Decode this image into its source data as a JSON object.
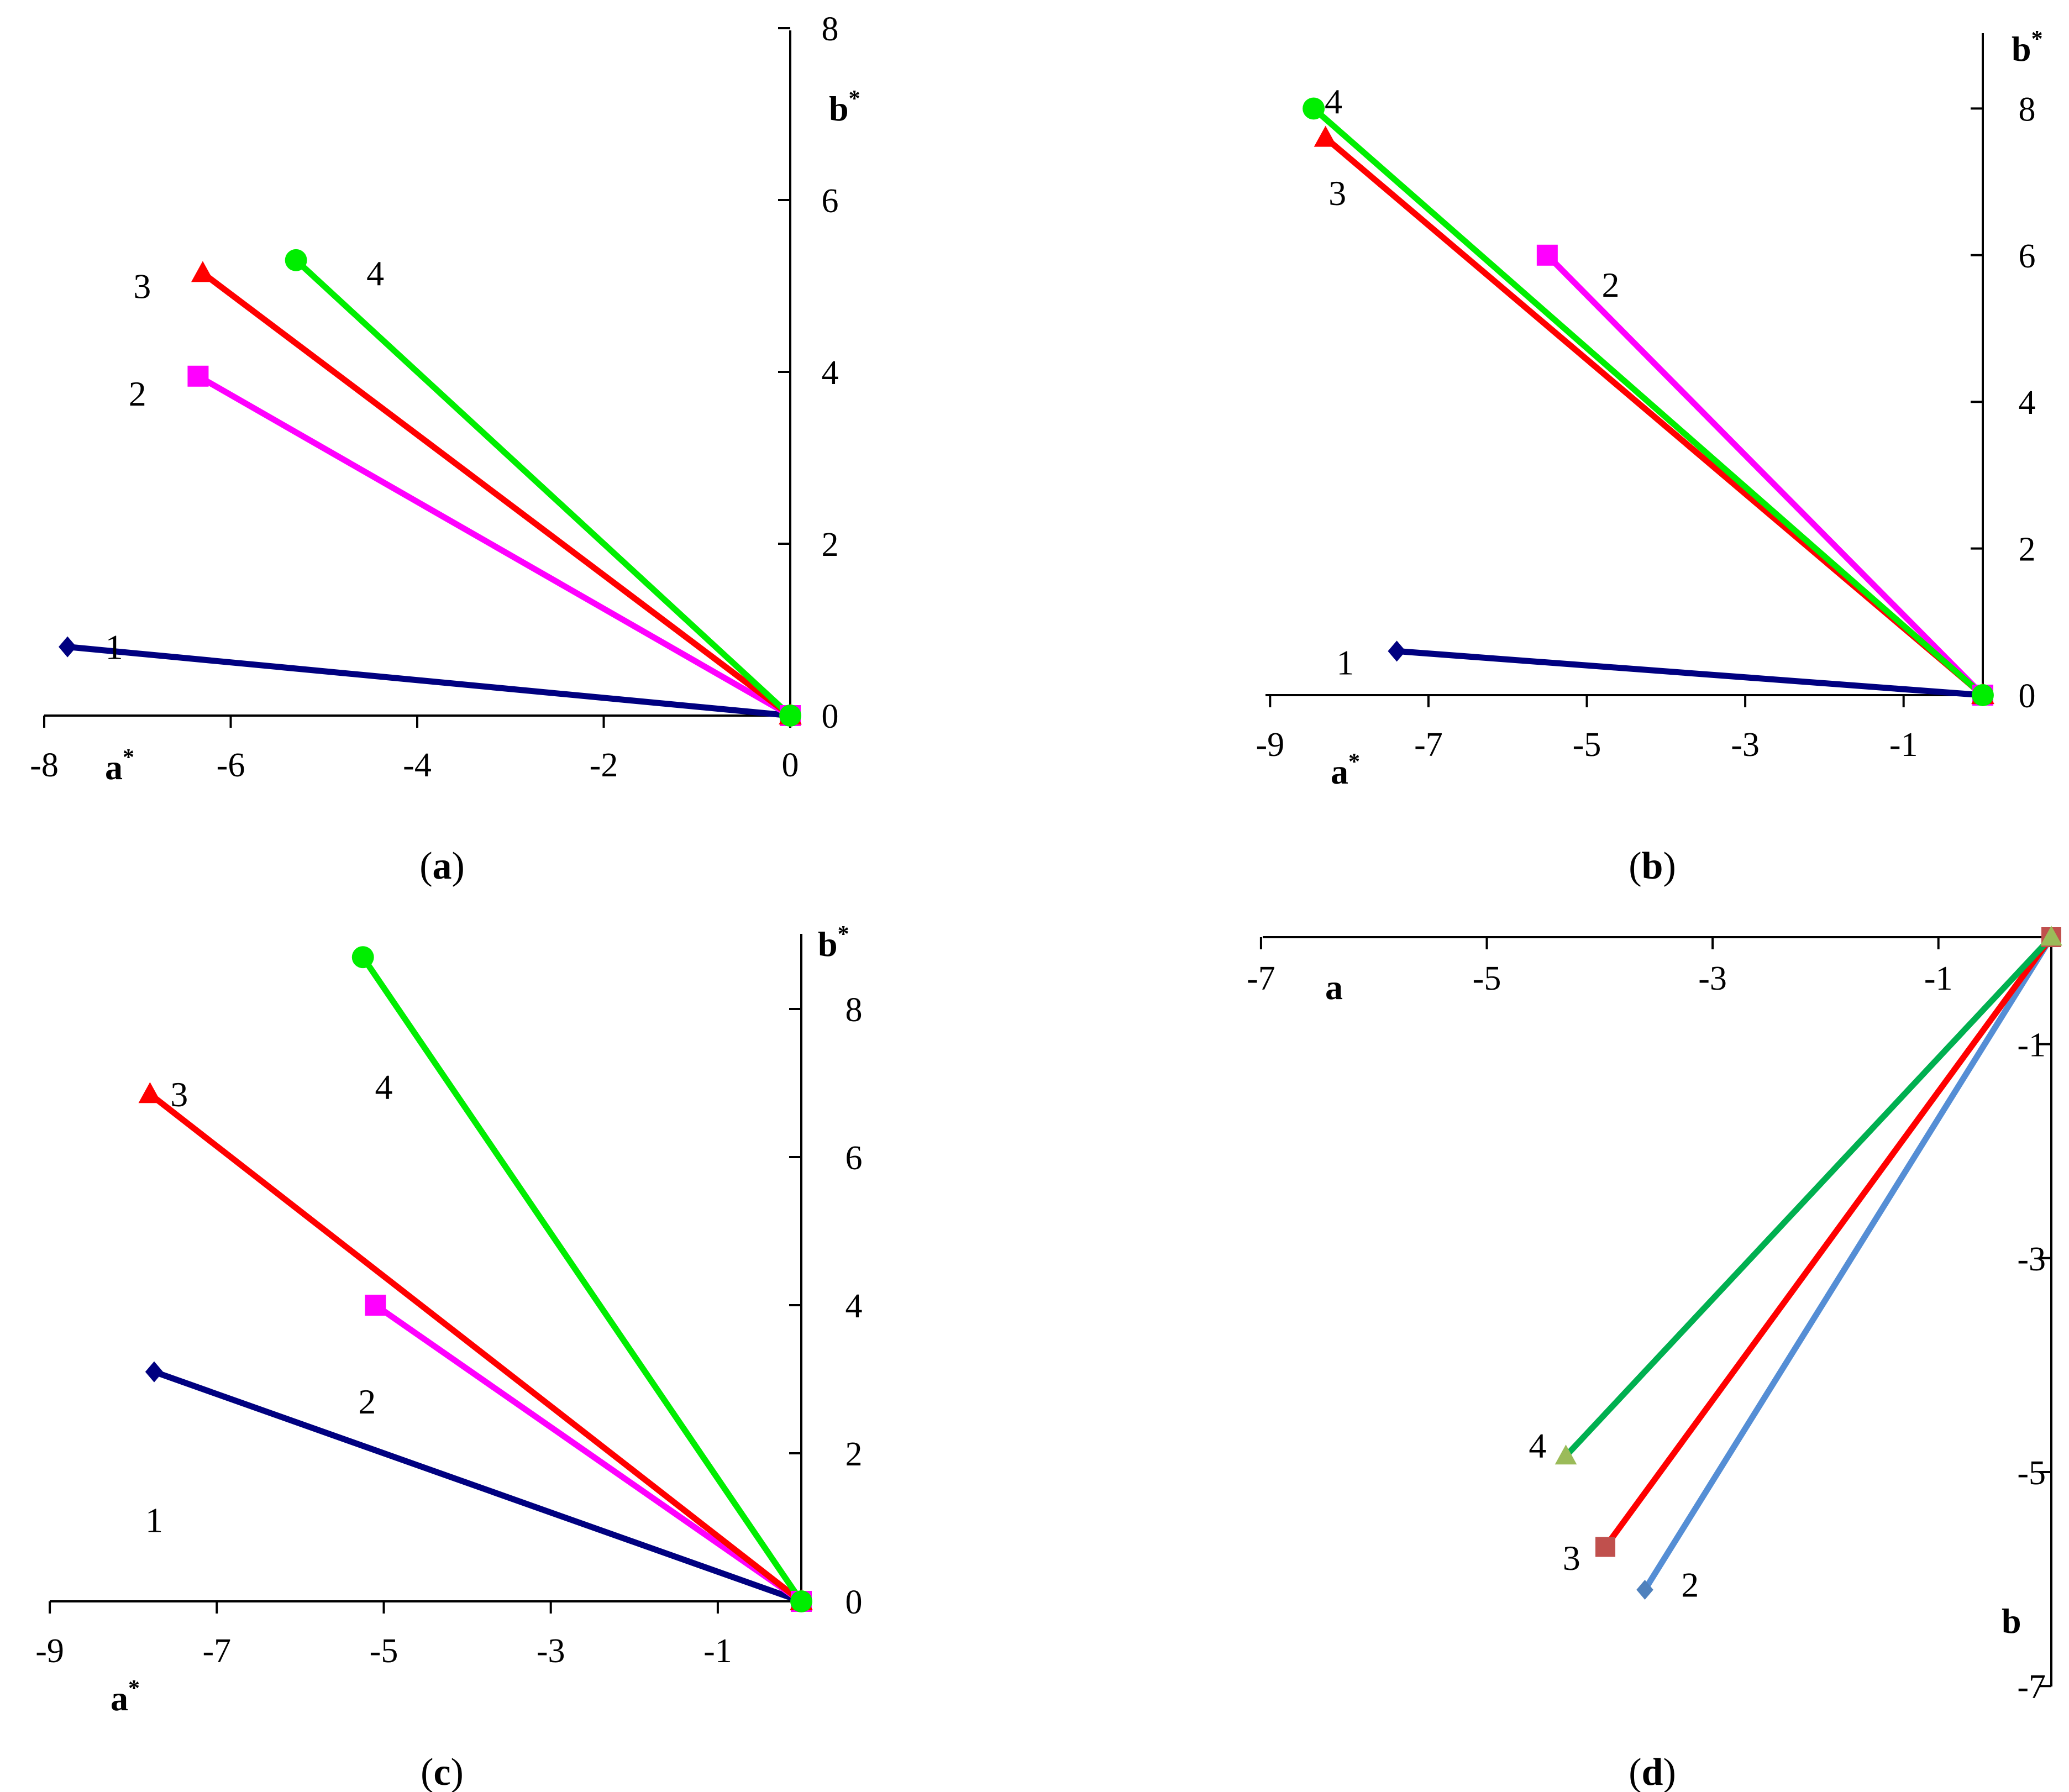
{
  "chart_data": [
    {
      "type": "line",
      "panel_label_open": "(",
      "panel_label_letter": "a",
      "panel_label_close": ")",
      "xlabel": "a",
      "xlabel_sup": "*",
      "ylabel": "b",
      "ylabel_sup": "*",
      "xlim": [
        -8,
        0
      ],
      "ylim": [
        0,
        8
      ],
      "xticks": [
        -8,
        -6,
        -4,
        -2,
        0
      ],
      "yticks": [
        0,
        2,
        4,
        6,
        8
      ],
      "series": [
        {
          "label": "1",
          "color": "#000080",
          "marker": "diamond",
          "x": [
            -7.75,
            0
          ],
          "y": [
            0.8,
            0
          ]
        },
        {
          "label": "2",
          "color": "#ff00ff",
          "marker": "square",
          "x": [
            -6.35,
            0
          ],
          "y": [
            3.95,
            0
          ]
        },
        {
          "label": "3",
          "color": "#ff0000",
          "marker": "triangle",
          "x": [
            -6.3,
            0
          ],
          "y": [
            5.15,
            0
          ]
        },
        {
          "label": "4",
          "color": "#00ee00",
          "marker": "circle",
          "x": [
            -5.3,
            0
          ],
          "y": [
            5.3,
            0
          ]
        }
      ]
    },
    {
      "type": "line",
      "panel_label_open": "(",
      "panel_label_letter": "b",
      "panel_label_close": ")",
      "xlabel": "a",
      "xlabel_sup": "*",
      "ylabel": "b",
      "ylabel_sup": "*",
      "xlim": [
        -9,
        0
      ],
      "ylim": [
        0,
        9
      ],
      "xticks": [
        -9,
        -7,
        -5,
        -3,
        -1
      ],
      "yticks": [
        0,
        2,
        4,
        6,
        8
      ],
      "series": [
        {
          "label": "1",
          "color": "#000080",
          "marker": "diamond",
          "x": [
            -7.4,
            0
          ],
          "y": [
            0.6,
            0
          ]
        },
        {
          "label": "2",
          "color": "#ff00ff",
          "marker": "square",
          "x": [
            -5.5,
            0
          ],
          "y": [
            6.0,
            0
          ]
        },
        {
          "label": "3",
          "color": "#ff0000",
          "marker": "triangle",
          "x": [
            -8.3,
            0
          ],
          "y": [
            7.6,
            0
          ]
        },
        {
          "label": "4",
          "color": "#00ee00",
          "marker": "circle",
          "x": [
            -8.45,
            0
          ],
          "y": [
            8.0,
            0
          ]
        }
      ]
    },
    {
      "type": "line",
      "panel_label_open": "(",
      "panel_label_letter": "c",
      "panel_label_close": ")",
      "xlabel": "a",
      "xlabel_sup": "*",
      "ylabel": "b",
      "ylabel_sup": "*",
      "xlim": [
        -9,
        0
      ],
      "ylim": [
        0,
        9
      ],
      "xticks": [
        -9,
        -7,
        -5,
        -3,
        -1
      ],
      "yticks": [
        0,
        2,
        4,
        6,
        8
      ],
      "series": [
        {
          "label": "1",
          "color": "#000080",
          "marker": "diamond",
          "x": [
            -7.75,
            0
          ],
          "y": [
            3.1,
            0
          ]
        },
        {
          "label": "2",
          "color": "#ff00ff",
          "marker": "square",
          "x": [
            -5.1,
            0
          ],
          "y": [
            4.0,
            0
          ]
        },
        {
          "label": "3",
          "color": "#ff0000",
          "marker": "triangle",
          "x": [
            -7.8,
            0
          ],
          "y": [
            6.85,
            0
          ]
        },
        {
          "label": "4",
          "color": "#00ee00",
          "marker": "circle",
          "x": [
            -5.25,
            0
          ],
          "y": [
            8.7,
            0
          ]
        }
      ]
    },
    {
      "type": "line",
      "panel_label_open": "(",
      "panel_label_letter": "d",
      "panel_label_close": ")",
      "xlabel": "a",
      "ylabel": "b",
      "xlim": [
        -7,
        0
      ],
      "ylim": [
        -7,
        0
      ],
      "xticks": [
        -7,
        -5,
        -3,
        -1
      ],
      "yticks": [
        -1,
        -3,
        -5,
        -7
      ],
      "series": [
        {
          "label": "2",
          "color": "#4f81bd",
          "line_color": "#558ed5",
          "marker": "diamond",
          "x": [
            -3.6,
            0
          ],
          "y": [
            -6.1,
            0
          ]
        },
        {
          "label": "3",
          "color": "#c0504d",
          "line_color": "#ff0000",
          "marker": "square",
          "x": [
            -3.95,
            0
          ],
          "y": [
            -5.7,
            0
          ]
        },
        {
          "label": "4",
          "color": "#9bbb59",
          "line_color": "#00b050",
          "marker": "triangle",
          "x": [
            -4.3,
            0
          ],
          "y": [
            -4.85,
            0
          ]
        }
      ]
    }
  ]
}
